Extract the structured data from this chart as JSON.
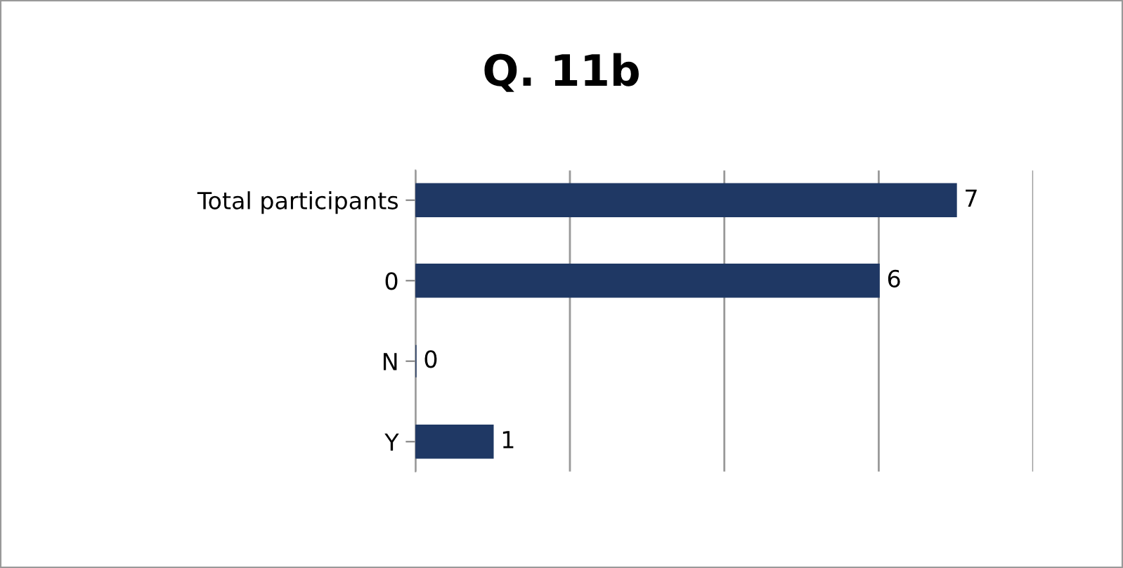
{
  "chart_data": {
    "type": "bar",
    "title": "Q. 11b",
    "orientation": "horizontal",
    "categories": [
      "Total participants",
      "0",
      "N",
      "Y"
    ],
    "values": [
      7,
      6,
      0,
      1
    ],
    "color": "#1f3864",
    "xlim": [
      0,
      8
    ],
    "xticks": [
      {
        "value": 0,
        "label": null
      },
      {
        "value": 2,
        "label": null
      },
      {
        "value": 4,
        "label": null
      },
      {
        "value": 6,
        "label": null
      },
      {
        "value": 8,
        "label": null
      }
    ],
    "tick_labels": "y",
    "grid": "x",
    "data_labels": true
  }
}
